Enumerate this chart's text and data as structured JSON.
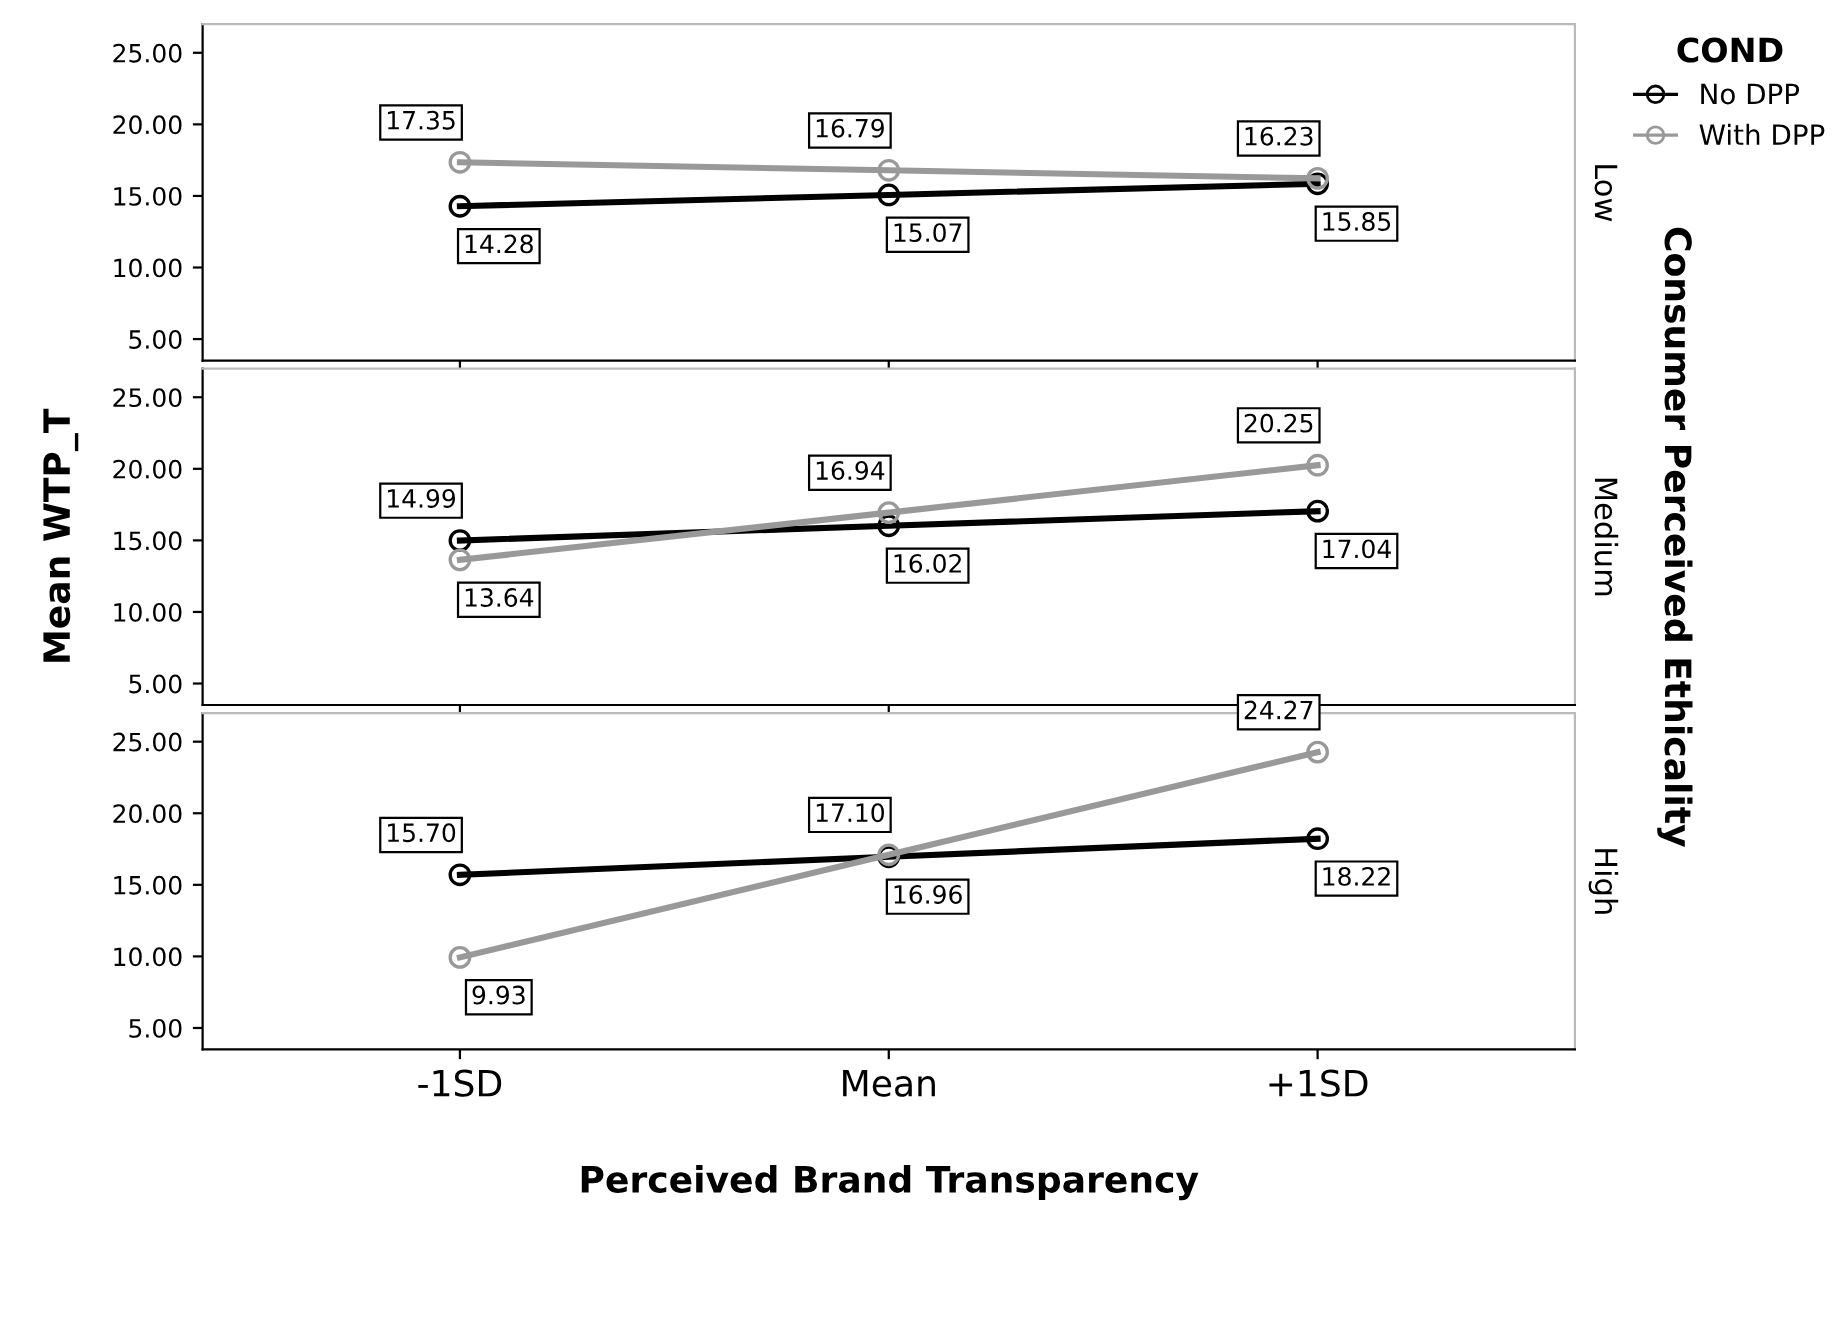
{
  "chart_data": [
    {
      "type": "line",
      "categories": [
        null,
        null,
        null
      ],
      "y2label": "Low",
      "legend_title": "COND",
      "legend": "top right",
      "tick_labels": "y",
      "ylim": [
        3.5,
        27
      ],
      "yticks": [
        {
          "value": 5,
          "label": "5.00"
        },
        {
          "value": 10,
          "label": "10.00"
        },
        {
          "value": 15,
          "label": "15.00"
        },
        {
          "value": 20,
          "label": "20.00"
        },
        {
          "value": 25,
          "label": "25.00"
        }
      ],
      "marker": "circle",
      "grid": false,
      "series": [
        {
          "name": "No DPP",
          "color": "#000000",
          "values": [
            14.28,
            15.07,
            15.85
          ],
          "value_labels": [
            "14.28",
            "15.07",
            "15.85"
          ]
        },
        {
          "name": "With DPP",
          "color": "#999999",
          "values": [
            17.35,
            16.79,
            16.23
          ],
          "value_labels": [
            "17.35",
            "16.79",
            "16.23"
          ]
        }
      ]
    },
    {
      "type": "line",
      "categories": [
        null,
        null,
        null
      ],
      "y2label": "Medium",
      "ylabel": "Mean WTP_T",
      "annotations": [
        "Consumer Perceived Ethicality"
      ],
      "tick_labels": "y",
      "ylim": [
        3.5,
        27
      ],
      "yticks": [
        {
          "value": 5,
          "label": "5.00"
        },
        {
          "value": 10,
          "label": "10.00"
        },
        {
          "value": 15,
          "label": "15.00"
        },
        {
          "value": 20,
          "label": "20.00"
        },
        {
          "value": 25,
          "label": "25.00"
        }
      ],
      "marker": "circle",
      "grid": false,
      "series": [
        {
          "color": "#000000",
          "values": [
            14.99,
            16.02,
            17.04
          ],
          "value_labels": [
            "14.99",
            "16.02",
            "17.04"
          ]
        },
        {
          "color": "#999999",
          "values": [
            13.64,
            16.94,
            20.25
          ],
          "value_labels": [
            "13.64",
            "16.94",
            "20.25"
          ]
        }
      ]
    },
    {
      "type": "line",
      "categories": [
        "-1SD",
        "Mean",
        "+1SD"
      ],
      "y2label": "High",
      "xlabel": "Perceived Brand Transparency",
      "ylim": [
        3.5,
        27
      ],
      "yticks": [
        {
          "value": 5,
          "label": "5.00"
        },
        {
          "value": 10,
          "label": "10.00"
        },
        {
          "value": 15,
          "label": "15.00"
        },
        {
          "value": 20,
          "label": "20.00"
        },
        {
          "value": 25,
          "label": "25.00"
        }
      ],
      "marker": "circle",
      "grid": false,
      "series": [
        {
          "color": "#000000",
          "values": [
            15.7,
            16.96,
            18.22
          ],
          "value_labels": [
            "15.70",
            "16.96",
            "18.22"
          ]
        },
        {
          "color": "#999999",
          "values": [
            9.93,
            17.1,
            24.27
          ],
          "value_labels": [
            "9.93",
            "17.10",
            "24.27"
          ]
        }
      ]
    }
  ]
}
